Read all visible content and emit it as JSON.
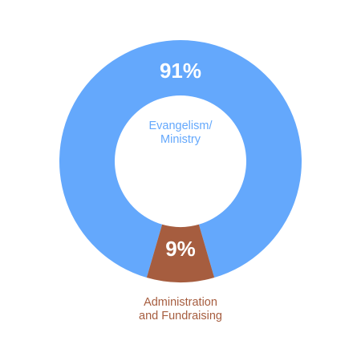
{
  "chart_data": {
    "type": "donut",
    "categories": [
      [
        "Evangelism/",
        "Ministry"
      ],
      [
        "Administration",
        "and Fundraising"
      ]
    ],
    "values": [
      91,
      9
    ],
    "value_labels": [
      "91%",
      "9%"
    ],
    "colors": [
      "#64a8fc",
      "#a65d3f"
    ]
  }
}
